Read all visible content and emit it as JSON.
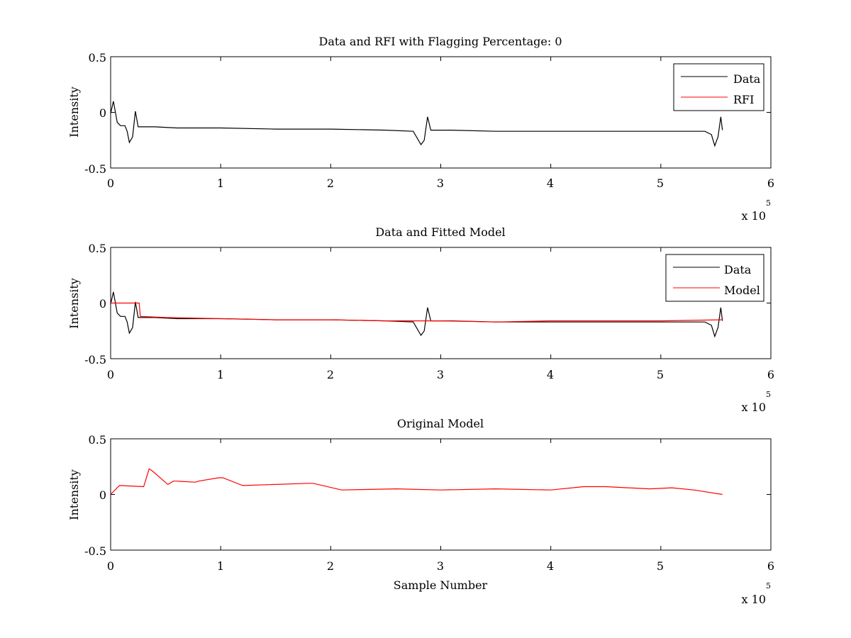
{
  "figure": {
    "background": "#ffffff"
  },
  "chart_data": [
    {
      "type": "line",
      "title": "Data and RFI with Flagging Percentage: 0",
      "xlabel": "",
      "ylabel": "Intensity",
      "xlim": [
        0,
        600000
      ],
      "ylim": [
        -0.5,
        0.5
      ],
      "x_ticks": [
        0,
        1,
        2,
        3,
        4,
        5,
        6
      ],
      "y_ticks": [
        "0.5",
        "0",
        "-0.5"
      ],
      "x_multiplier": "x 10",
      "x_multiplier_exponent": "5",
      "grid": false,
      "legend": {
        "position": "top-right",
        "entries": [
          "Data",
          "RFI"
        ]
      },
      "series": [
        {
          "name": "Data",
          "color": "#000000",
          "points": [
            [
              0,
              -0.01
            ],
            [
              2500,
              0.1
            ],
            [
              6000,
              -0.09
            ],
            [
              9000,
              -0.12
            ],
            [
              13000,
              -0.12
            ],
            [
              15000,
              -0.17
            ],
            [
              17000,
              -0.27
            ],
            [
              20000,
              -0.22
            ],
            [
              22500,
              0.01
            ],
            [
              25000,
              -0.13
            ],
            [
              40000,
              -0.13
            ],
            [
              60000,
              -0.14
            ],
            [
              100000,
              -0.14
            ],
            [
              150000,
              -0.15
            ],
            [
              200000,
              -0.15
            ],
            [
              250000,
              -0.16
            ],
            [
              275000,
              -0.17
            ],
            [
              282000,
              -0.29
            ],
            [
              285000,
              -0.25
            ],
            [
              288000,
              -0.04
            ],
            [
              291000,
              -0.16
            ],
            [
              310000,
              -0.16
            ],
            [
              350000,
              -0.17
            ],
            [
              400000,
              -0.17
            ],
            [
              450000,
              -0.17
            ],
            [
              500000,
              -0.17
            ],
            [
              540000,
              -0.17
            ],
            [
              546000,
              -0.2
            ],
            [
              549000,
              -0.3
            ],
            [
              552000,
              -0.22
            ],
            [
              554500,
              -0.04
            ],
            [
              556000,
              -0.16
            ]
          ]
        },
        {
          "name": "RFI",
          "color": "#ff0000",
          "points": []
        }
      ]
    },
    {
      "type": "line",
      "title": "Data and Fitted Model",
      "xlabel": "",
      "ylabel": "Intensity",
      "xlim": [
        0,
        600000
      ],
      "ylim": [
        -0.5,
        0.5
      ],
      "x_ticks": [
        0,
        1,
        2,
        3,
        4,
        5,
        6
      ],
      "y_ticks": [
        "0.5",
        "0",
        "-0.5"
      ],
      "x_multiplier": "x 10",
      "x_multiplier_exponent": "5",
      "grid": false,
      "legend": {
        "position": "top-right",
        "entries": [
          "Data",
          "Model"
        ]
      },
      "series": [
        {
          "name": "Data",
          "color": "#000000",
          "points": [
            [
              0,
              -0.01
            ],
            [
              2500,
              0.1
            ],
            [
              6000,
              -0.09
            ],
            [
              9000,
              -0.12
            ],
            [
              13000,
              -0.12
            ],
            [
              15000,
              -0.17
            ],
            [
              17000,
              -0.27
            ],
            [
              20000,
              -0.22
            ],
            [
              22500,
              0.01
            ],
            [
              25000,
              -0.13
            ],
            [
              40000,
              -0.13
            ],
            [
              60000,
              -0.14
            ],
            [
              100000,
              -0.14
            ],
            [
              150000,
              -0.15
            ],
            [
              200000,
              -0.15
            ],
            [
              250000,
              -0.16
            ],
            [
              275000,
              -0.17
            ],
            [
              282000,
              -0.29
            ],
            [
              285000,
              -0.25
            ],
            [
              288000,
              -0.04
            ],
            [
              291000,
              -0.16
            ],
            [
              310000,
              -0.16
            ],
            [
              350000,
              -0.17
            ],
            [
              400000,
              -0.17
            ],
            [
              450000,
              -0.17
            ],
            [
              500000,
              -0.17
            ],
            [
              540000,
              -0.17
            ],
            [
              546000,
              -0.2
            ],
            [
              549000,
              -0.3
            ],
            [
              552000,
              -0.22
            ],
            [
              554500,
              -0.04
            ],
            [
              556000,
              -0.16
            ]
          ]
        },
        {
          "name": "Model",
          "color": "#ff0000",
          "points": [
            [
              0,
              0.0
            ],
            [
              26000,
              0.0
            ],
            [
              27000,
              -0.12
            ],
            [
              50000,
              -0.13
            ],
            [
              100000,
              -0.14
            ],
            [
              150000,
              -0.15
            ],
            [
              200000,
              -0.15
            ],
            [
              250000,
              -0.16
            ],
            [
              300000,
              -0.16
            ],
            [
              350000,
              -0.17
            ],
            [
              400000,
              -0.16
            ],
            [
              450000,
              -0.16
            ],
            [
              500000,
              -0.16
            ],
            [
              556000,
              -0.15
            ]
          ]
        }
      ]
    },
    {
      "type": "line",
      "title": "Original Model",
      "xlabel": "Sample Number",
      "ylabel": "Intensity",
      "xlim": [
        0,
        600000
      ],
      "ylim": [
        -0.5,
        0.5
      ],
      "x_ticks": [
        0,
        1,
        2,
        3,
        4,
        5,
        6
      ],
      "y_ticks": [
        "0.5",
        "0",
        "-0.5"
      ],
      "x_multiplier": "x 10",
      "x_multiplier_exponent": "5",
      "grid": false,
      "series": [
        {
          "name": "Original Model",
          "color": "#ff0000",
          "points": [
            [
              0,
              0.0
            ],
            [
              8000,
              0.08
            ],
            [
              30000,
              0.07
            ],
            [
              35000,
              0.23
            ],
            [
              38000,
              0.21
            ],
            [
              52000,
              0.09
            ],
            [
              57000,
              0.12
            ],
            [
              60000,
              0.12
            ],
            [
              77000,
              0.11
            ],
            [
              80000,
              0.12
            ],
            [
              98000,
              0.15
            ],
            [
              102000,
              0.15
            ],
            [
              120000,
              0.08
            ],
            [
              180000,
              0.1
            ],
            [
              184000,
              0.1
            ],
            [
              210000,
              0.04
            ],
            [
              260000,
              0.05
            ],
            [
              300000,
              0.04
            ],
            [
              350000,
              0.05
            ],
            [
              400000,
              0.04
            ],
            [
              430000,
              0.07
            ],
            [
              450000,
              0.07
            ],
            [
              470000,
              0.06
            ],
            [
              490000,
              0.05
            ],
            [
              510000,
              0.06
            ],
            [
              530000,
              0.04
            ],
            [
              556000,
              0.0
            ]
          ]
        }
      ]
    }
  ]
}
